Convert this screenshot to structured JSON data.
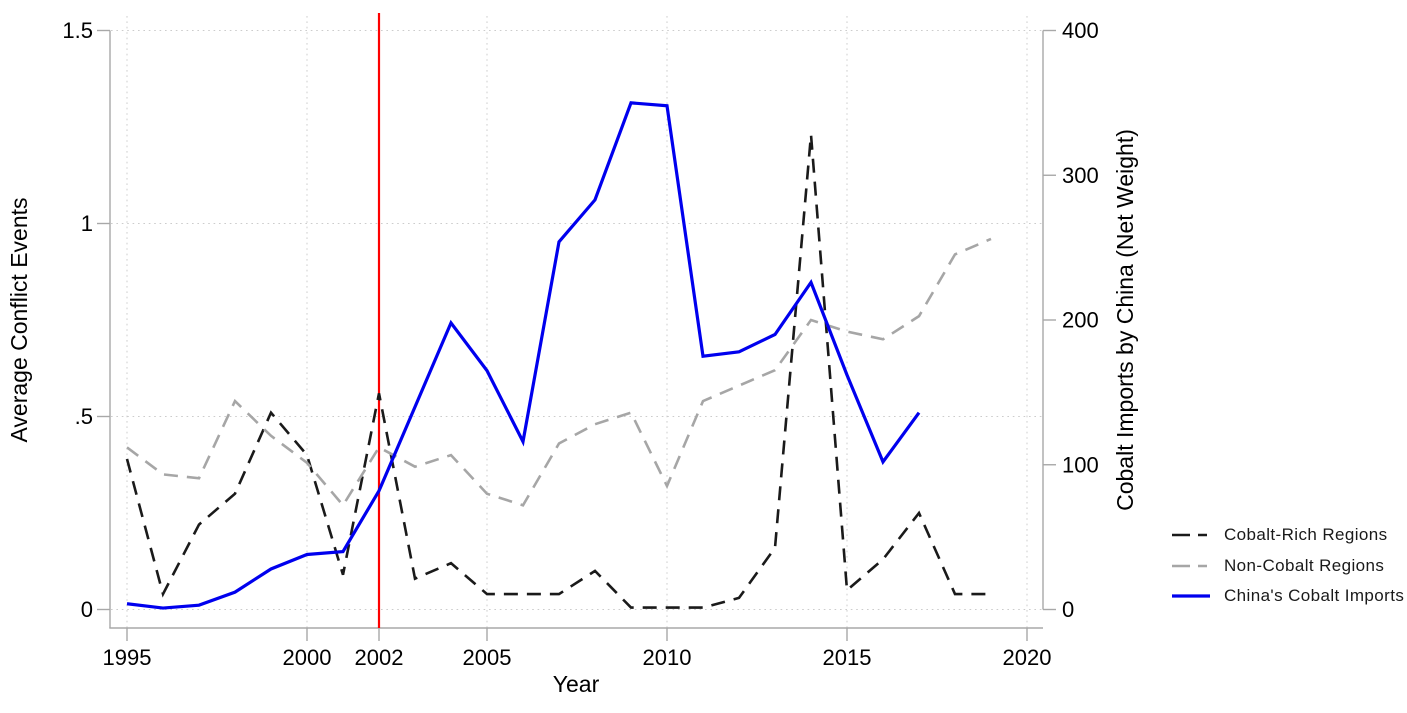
{
  "figure": {
    "left_axis": {
      "title": "Average Conflict Events",
      "tick_labels": [
        "0",
        ".5",
        "1",
        "1.5"
      ],
      "tick_values": [
        0,
        0.5,
        1,
        1.5
      ]
    },
    "right_axis": {
      "title": "Cobalt Imports by China (Net Weight)",
      "tick_labels": [
        "0",
        "100",
        "200",
        "300",
        "400"
      ],
      "tick_values": [
        0,
        100,
        200,
        300,
        400
      ]
    },
    "x_axis": {
      "title": "Year",
      "tick_labels": [
        "1995",
        "2000",
        "2002",
        "2005",
        "2010",
        "2015",
        "2020"
      ],
      "tick_values": [
        1995,
        2000,
        2002,
        2005,
        2010,
        2015,
        2020
      ]
    },
    "colors": {
      "axis_line": "#a8a8a8",
      "gridline": "#cccccc",
      "event_line": "#fe0000",
      "cobalt_rich": "#1a1a1a",
      "non_cobalt": "#a6a6a6",
      "china_imports": "#0000ee"
    }
  },
  "chart_data": {
    "type": "line",
    "title": "",
    "xlabel": "Year",
    "ylabel_left": "Average Conflict Events",
    "ylabel_right": "Cobalt Imports by China (Net Weight)",
    "xlim": [
      1994.5,
      2020
    ],
    "ylim_left": [
      0,
      1.5
    ],
    "ylim_right": [
      0,
      400
    ],
    "grid": "dotted",
    "legend_position": "outside-right",
    "vline": {
      "x": 2002,
      "color": "#fe0000"
    },
    "x": [
      1995,
      1996,
      1997,
      1998,
      1999,
      2000,
      2001,
      2002,
      2003,
      2004,
      2005,
      2006,
      2007,
      2008,
      2009,
      2010,
      2011,
      2012,
      2013,
      2014,
      2015,
      2016,
      2017,
      2018,
      2019
    ],
    "series": [
      {
        "name": "Cobalt-Rich Regions",
        "axis": "left",
        "color": "#1a1a1a",
        "style": "dashed",
        "values": [
          0.39,
          0.04,
          0.22,
          0.3,
          0.51,
          0.4,
          0.09,
          0.56,
          0.08,
          0.12,
          0.04,
          0.04,
          0.04,
          0.1,
          0.005,
          0.005,
          0.005,
          0.03,
          0.16,
          1.23,
          0.05,
          0.13,
          0.25,
          0.04,
          0.04
        ]
      },
      {
        "name": "Non-Cobalt Regions",
        "axis": "left",
        "color": "#a6a6a6",
        "style": "dashed",
        "values": [
          0.42,
          0.35,
          0.34,
          0.54,
          0.45,
          0.38,
          0.27,
          0.42,
          0.37,
          0.4,
          0.3,
          0.27,
          0.43,
          0.48,
          0.51,
          0.32,
          0.54,
          0.58,
          0.62,
          0.75,
          0.72,
          0.7,
          0.76,
          0.92,
          0.96
        ]
      },
      {
        "name": "China's Cobalt Imports",
        "axis": "right",
        "color": "#0000ee",
        "style": "solid",
        "values": [
          4,
          1,
          3,
          12,
          28,
          38,
          40,
          82,
          140,
          198,
          165,
          116,
          254,
          283,
          350,
          348,
          175,
          178,
          190,
          226,
          162,
          102,
          136,
          null,
          null
        ]
      }
    ]
  }
}
